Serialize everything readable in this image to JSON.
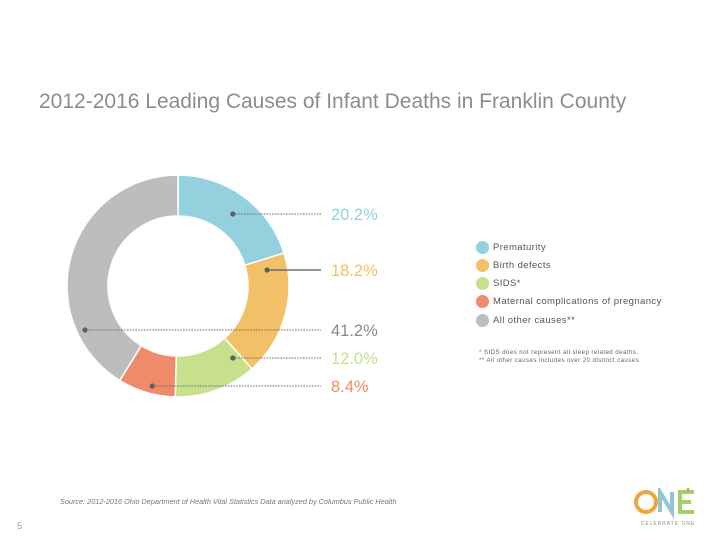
{
  "title": "2012-2016 Leading Causes of Infant Deaths in Franklin County",
  "chart_data": {
    "type": "pie",
    "subtype": "donut",
    "title": "2012-2016 Leading Causes of Infant Deaths in Franklin County",
    "categories": [
      "Prematurity",
      "Birth defects",
      "SIDS*",
      "Maternal complications of pregnancy",
      "All other causes**"
    ],
    "values": [
      20.2,
      18.2,
      12.0,
      8.4,
      41.2
    ],
    "labels": [
      "20.2%",
      "18.2%",
      "12.0%",
      "8.4%",
      "41.2%"
    ],
    "colors": [
      "#94d0dd",
      "#f2c066",
      "#c6e08c",
      "#ef8a6a",
      "#bdbdbd"
    ],
    "legend_position": "right"
  },
  "footnotes": [
    "* SIDS does not represent all sleep related deaths.",
    "** All other causes includes over 20 distinct causes."
  ],
  "source": "Source: 2012-2016 Ohio Department of Health Vital Statistics Data analyzed by Columbus Public Health",
  "page_number": "5",
  "logo": {
    "wordmark": "ONE",
    "tagline": "CELEBRATE ONE"
  }
}
